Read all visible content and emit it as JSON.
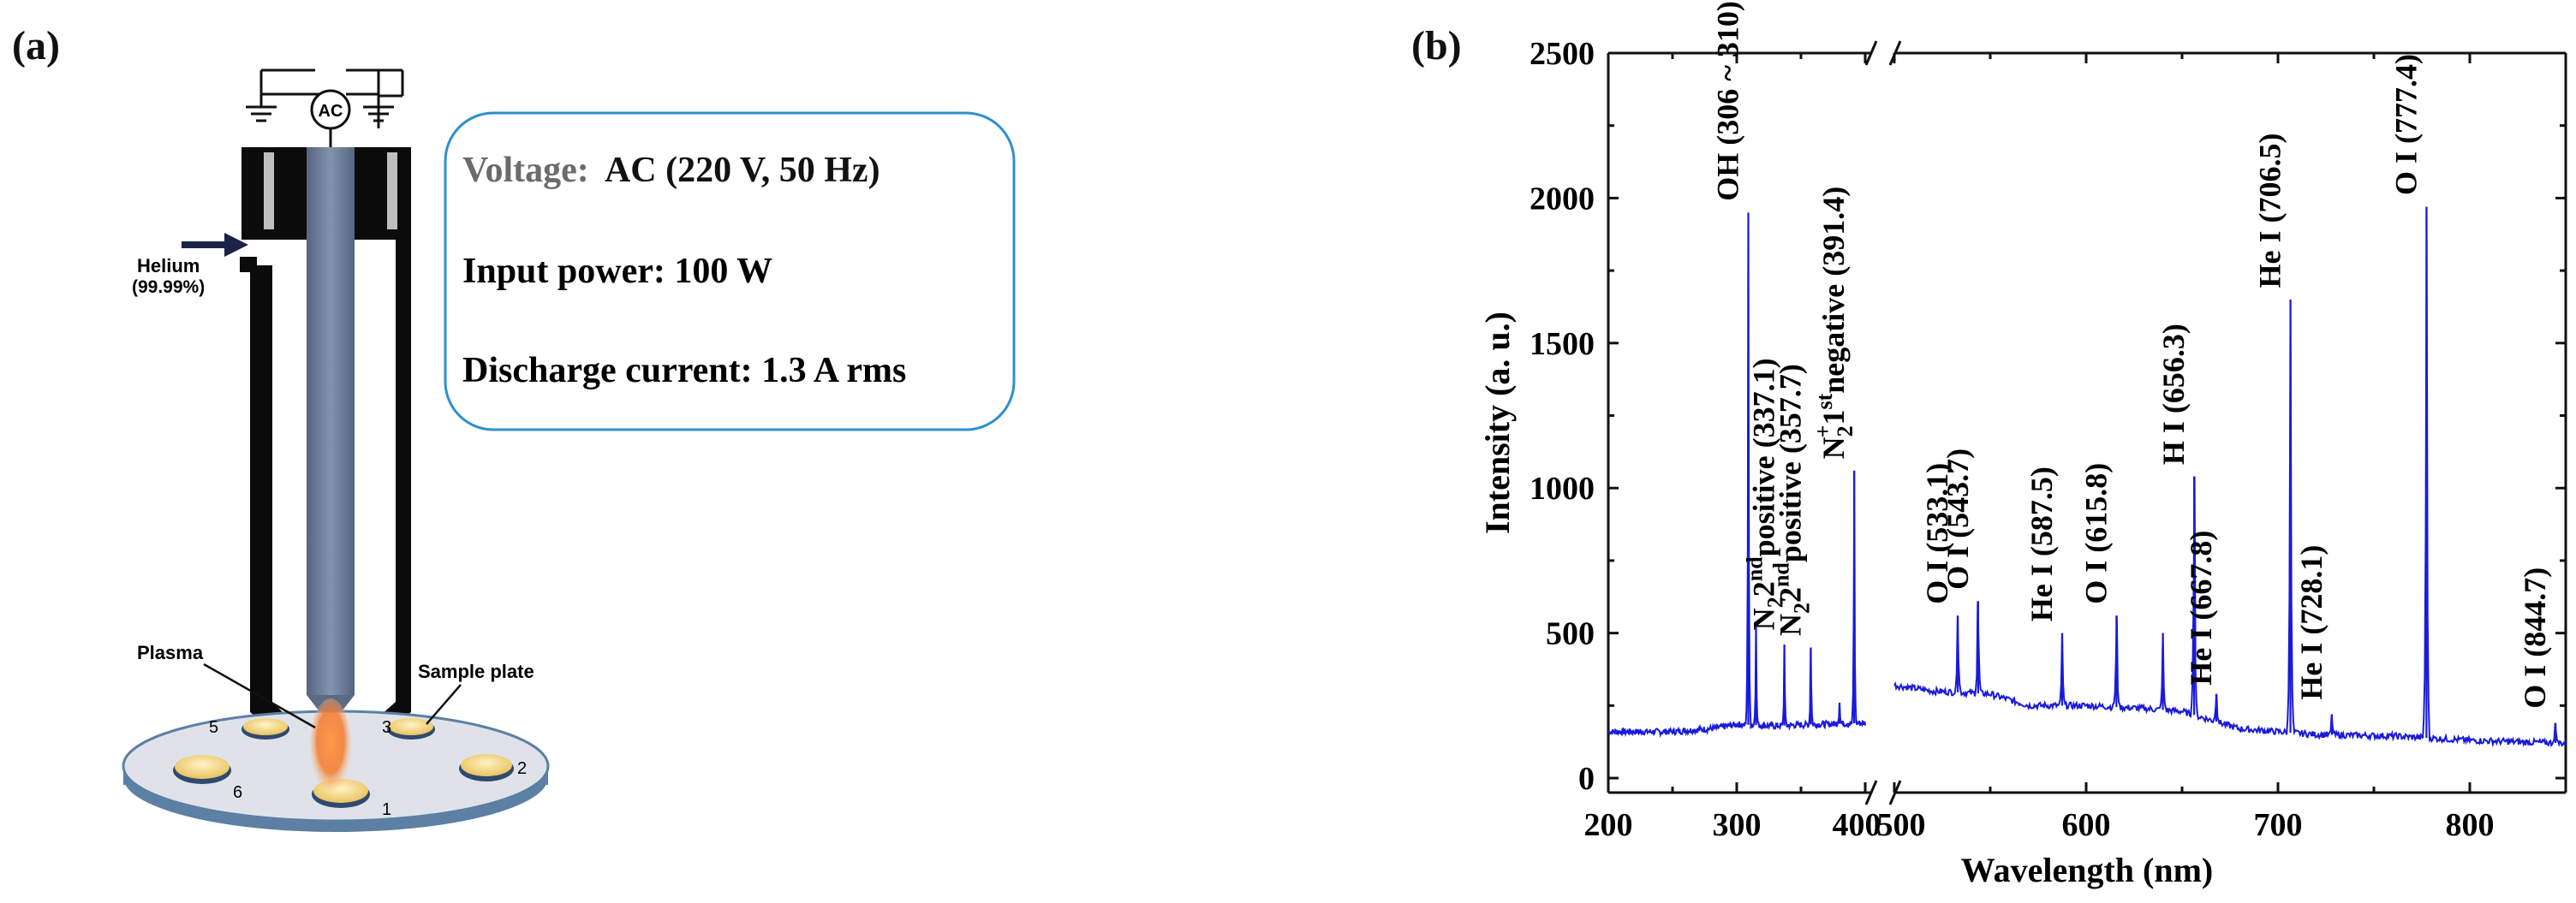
{
  "panel_a": {
    "label": "(a)",
    "ac_source_label": "AC",
    "gas_label_line1": "Helium",
    "gas_label_line2": "(99.99%)",
    "plasma_label": "Plasma",
    "sample_plate_label": "Sample plate",
    "sample_numbers": [
      "1",
      "2",
      "3",
      "5",
      "6"
    ],
    "specs": {
      "voltage_label": "Voltage:",
      "voltage_value": "AC (220 V, 50 Hz)",
      "power": "Input power: 100 W",
      "current": "Discharge current: 1.3 A rms"
    },
    "colors": {
      "electrode": "#6f7f9a",
      "plasma": "#f47a2c",
      "disc": "#d9dde3",
      "sample": "#f4dc8c",
      "box_border": "#2f8fd0"
    }
  },
  "panel_b": {
    "label": "(b)",
    "chart_data": {
      "type": "line",
      "xlabel": "Wavelength (nm)",
      "ylabel": "Intensity (a. u.)",
      "xlim_segment1": [
        200,
        400
      ],
      "xlim_segment2": [
        500,
        850
      ],
      "axis_break": "between 400 and 500 nm",
      "ylim": [
        -50,
        2500
      ],
      "x_ticks": [
        "200",
        "300",
        "400",
        "500",
        "600",
        "700",
        "800"
      ],
      "y_ticks": [
        "0",
        "500",
        "1000",
        "1500",
        "2000",
        "2500"
      ],
      "line_color": "#1a1adb",
      "grid": false,
      "peaks": [
        {
          "x": 309,
          "y": 1950
        },
        {
          "x": 315,
          "y": 520
        },
        {
          "x": 337.1,
          "y": 460
        },
        {
          "x": 357.7,
          "y": 450
        },
        {
          "x": 380,
          "y": 260
        },
        {
          "x": 391.4,
          "y": 1060
        },
        {
          "x": 533.1,
          "y": 560
        },
        {
          "x": 543.7,
          "y": 610
        },
        {
          "x": 587.5,
          "y": 500
        },
        {
          "x": 615.8,
          "y": 560
        },
        {
          "x": 640,
          "y": 500
        },
        {
          "x": 656.3,
          "y": 1040
        },
        {
          "x": 667.8,
          "y": 290
        },
        {
          "x": 706.5,
          "y": 1650
        },
        {
          "x": 728.1,
          "y": 220
        },
        {
          "x": 777.4,
          "y": 1970
        },
        {
          "x": 844.7,
          "y": 190
        }
      ],
      "baseline_segment1": [
        [
          200,
          160
        ],
        [
          250,
          160
        ],
        [
          280,
          170
        ],
        [
          300,
          185
        ],
        [
          330,
          180
        ],
        [
          360,
          185
        ],
        [
          400,
          190
        ]
      ],
      "baseline_segment2": [
        [
          500,
          320
        ],
        [
          520,
          300
        ],
        [
          550,
          290
        ],
        [
          570,
          250
        ],
        [
          600,
          250
        ],
        [
          630,
          240
        ],
        [
          650,
          230
        ],
        [
          680,
          170
        ],
        [
          720,
          150
        ],
        [
          760,
          145
        ],
        [
          800,
          130
        ],
        [
          850,
          120
        ]
      ],
      "annotations": {
        "oh": "OH (306 ~ 310)",
        "n2_337": {
          "main": "N",
          "sub": "2",
          "sup": "nd",
          "prefix2": "2",
          "rest": "positive (337.1)"
        },
        "n2_357": {
          "main": "N",
          "sub": "2",
          "sup": "nd",
          "prefix2": "2",
          "rest": "positive (357.7)"
        },
        "n2p_391": {
          "main": "N",
          "sub": "2",
          "sup_plus": "+",
          "one": "1",
          "sup": "st",
          "rest": "negative (391.4)"
        },
        "o533": "O I (533.1)",
        "o543": "O I (543.7)",
        "he587": "He I (587.5)",
        "o615": "O I (615.8)",
        "h656": "H I (656.3)",
        "he667": "He I (667.8)",
        "he706": "He I (706.5)",
        "he728": "He I (728.1)",
        "o777": "O I (777.4)",
        "o844": "O I (844.7)"
      }
    }
  }
}
